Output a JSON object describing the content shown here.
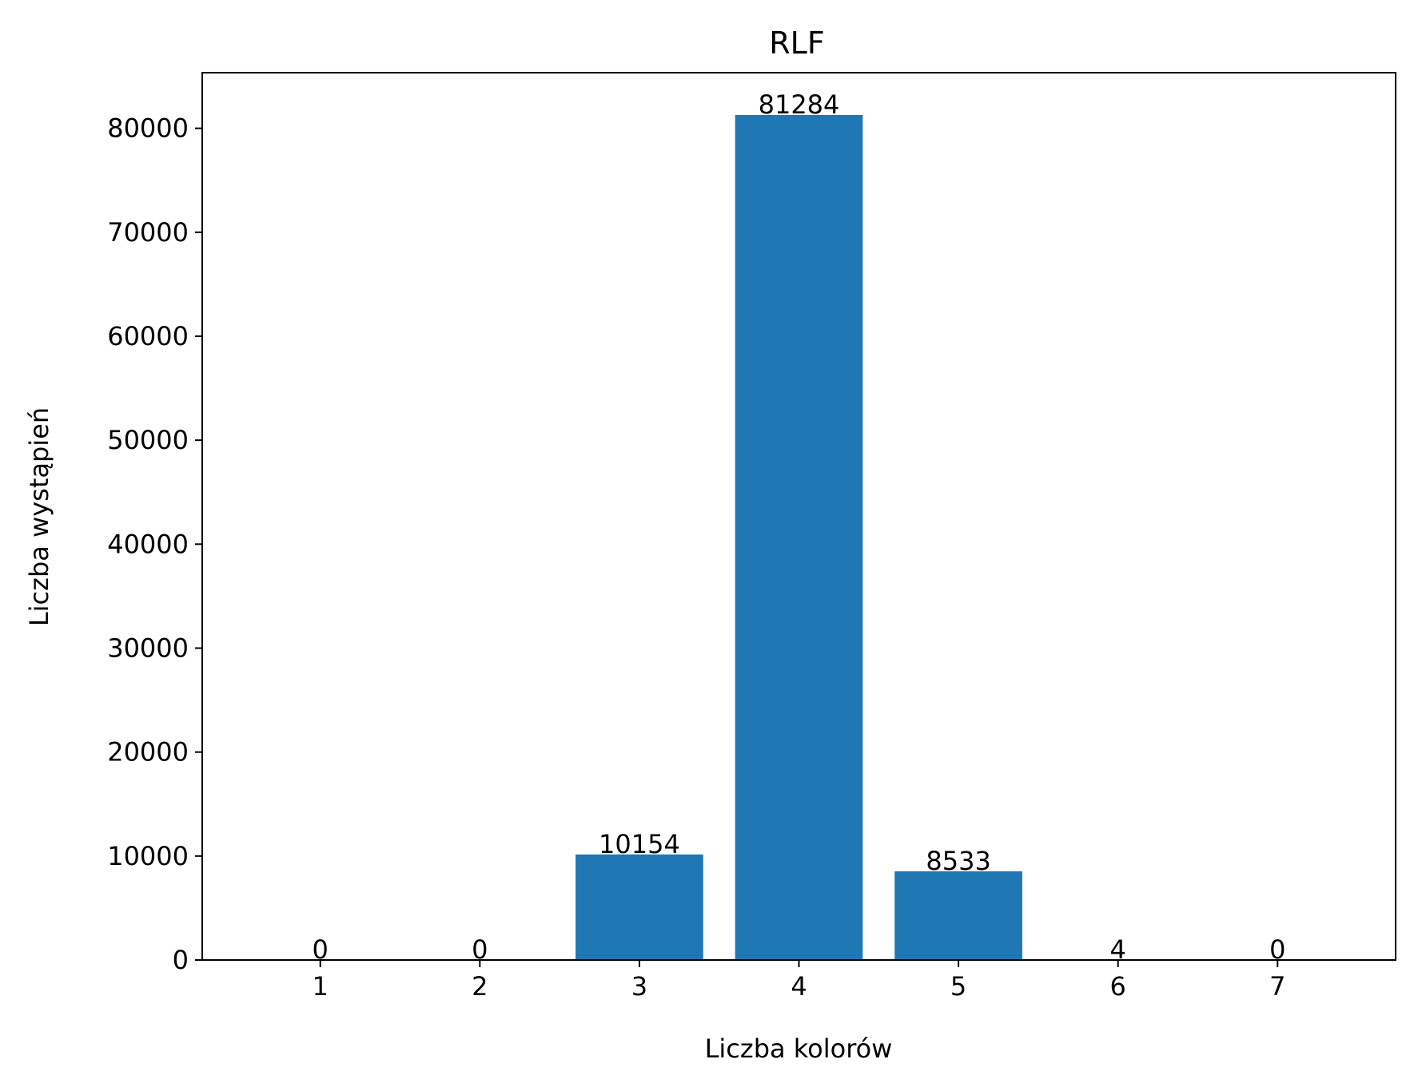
{
  "chart_data": {
    "type": "bar",
    "title": "RLF",
    "xlabel": "Liczba kolorów",
    "ylabel": "Liczba wystąpień",
    "categories": [
      1,
      2,
      3,
      4,
      5,
      6,
      7
    ],
    "values": [
      0,
      0,
      10154,
      81284,
      8533,
      4,
      0
    ],
    "data_labels": [
      "0",
      "0",
      "10154",
      "81284",
      "8533",
      "4",
      "0"
    ],
    "ylim": [
      0,
      85350
    ],
    "xlim": [
      0.26,
      7.74
    ],
    "yticks": [
      0,
      10000,
      20000,
      30000,
      40000,
      50000,
      60000,
      70000,
      80000
    ],
    "grid": false,
    "bar_color": "#1f77b4"
  }
}
